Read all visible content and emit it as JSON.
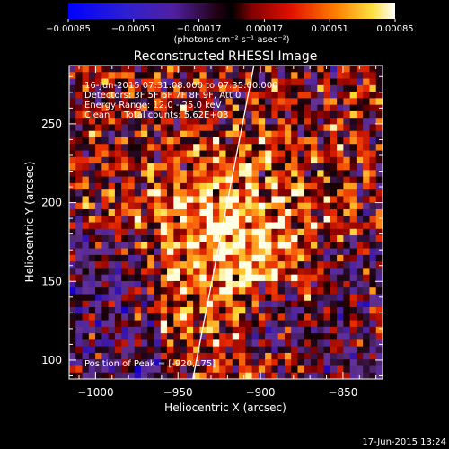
{
  "chart_data": {
    "type": "heatmap",
    "title": "Reconstructed RHESSI Image",
    "xlabel": "Heliocentric X (arcsec)",
    "ylabel": "Heliocentric Y (arcsec)",
    "xlim": [
      -1016,
      -826
    ],
    "ylim": [
      88,
      287
    ],
    "xticks": [
      -1000,
      -950,
      -900,
      -850
    ],
    "xtick_labels": [
      "−1000",
      "−950",
      "−900",
      "−850"
    ],
    "yticks": [
      100,
      150,
      200,
      250
    ],
    "ytick_labels": [
      "100",
      "150",
      "200",
      "250"
    ],
    "colorbar": {
      "min": -0.00085,
      "max": 0.00085,
      "tick_values": [
        -0.00085,
        -0.00051,
        -0.00017,
        0.00017,
        0.00051,
        0.00085
      ],
      "tick_labels": [
        "−0.00085",
        "−0.00051",
        "−0.00017",
        "0.00017",
        "0.00051",
        "0.00085"
      ],
      "units_text": "(photons cm⁻² s⁻¹ asec⁻²)"
    },
    "annotations": [
      "16-Jun-2015 07:31:08.000 to 07:35:00.000",
      "Detectors: 3F 5F 6F 7F 8F 9F, Att 0",
      "Energy Range: 12.0 - 25.0 keV",
      "Clean     Total counts: 5.62E+03"
    ],
    "peak_label": "Position of Peak = [-920,175]",
    "peak": {
      "x": -920,
      "y": 175
    },
    "limb_curve": [
      {
        "x": -941,
        "y": 88
      },
      {
        "x": -920,
        "y": 200
      },
      {
        "x": -904,
        "y": 287
      }
    ],
    "grid": false
  },
  "footer": {
    "timestamp": "17-Jun-2015 13:24"
  }
}
